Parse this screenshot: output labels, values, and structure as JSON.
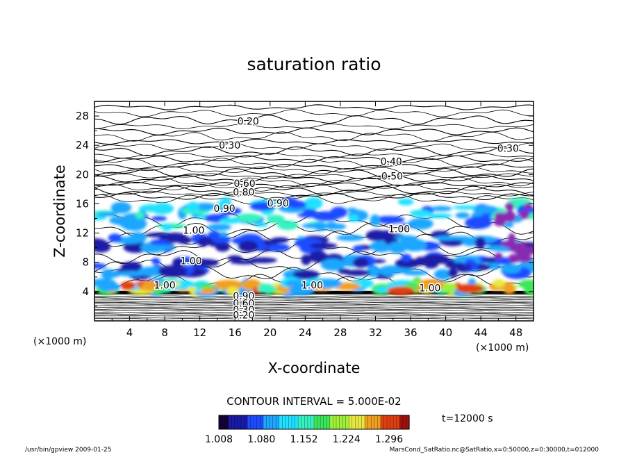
{
  "chart_data": {
    "type": "heatmap",
    "title": "saturation ratio",
    "xlabel": "X-coordinate",
    "ylabel": "Z-coordinate",
    "x_unit": "(×1000 m)",
    "y_unit": "(×1000 m)",
    "xlim": [
      0,
      50
    ],
    "ylim": [
      0,
      30
    ],
    "x_ticks": [
      4,
      8,
      12,
      16,
      20,
      24,
      28,
      32,
      36,
      40,
      44,
      48
    ],
    "y_ticks": [
      4,
      8,
      12,
      16,
      20,
      24,
      28
    ],
    "contour_interval_label": "CONTOUR INTERVAL = 5.000E-02",
    "time_label": "t=12000 s",
    "colorbar_ticks": [
      "1.008",
      "1.080",
      "1.152",
      "1.224",
      "1.296"
    ],
    "colorbar_range": [
      1.008,
      1.33
    ],
    "contour_labels": [
      {
        "text": "0.20",
        "x": 17.5,
        "z": 27.3
      },
      {
        "text": "0.30",
        "x": 15.4,
        "z": 24.0
      },
      {
        "text": "0.30",
        "x": 47.1,
        "z": 23.6
      },
      {
        "text": "0.40",
        "x": 33.8,
        "z": 21.8
      },
      {
        "text": "0.50",
        "x": 33.9,
        "z": 19.8
      },
      {
        "text": "0.60",
        "x": 17.1,
        "z": 18.8
      },
      {
        "text": "0.80",
        "x": 17.0,
        "z": 17.6
      },
      {
        "text": "0.90",
        "x": 20.9,
        "z": 16.1
      },
      {
        "text": "0.90",
        "x": 14.8,
        "z": 15.4
      },
      {
        "text": "1.00",
        "x": 11.3,
        "z": 12.4
      },
      {
        "text": "1.00",
        "x": 34.7,
        "z": 12.6
      },
      {
        "text": "1.00",
        "x": 11.0,
        "z": 8.2
      },
      {
        "text": "1.00",
        "x": 8.0,
        "z": 4.9
      },
      {
        "text": "1.00",
        "x": 24.8,
        "z": 4.9
      },
      {
        "text": "1.00",
        "x": 38.2,
        "z": 4.5
      },
      {
        "text": "0.90",
        "x": 17.0,
        "z": 3.4
      },
      {
        "text": "0.60",
        "x": 17.0,
        "z": 2.4
      },
      {
        "text": "0.30",
        "x": 17.0,
        "z": 1.5
      },
      {
        "text": "0.20",
        "x": 17.0,
        "z": 0.8
      }
    ]
  },
  "footer": {
    "left": "/usr/bin/gpview  2009-01-25",
    "right": "MarsCond_SatRatio.nc@SatRatio,x=0:50000,z=0:30000,t=012000"
  },
  "colors": {
    "colormap": [
      "#16003a",
      "#1a1aa6",
      "#1e4bff",
      "#1fa6ff",
      "#20e0ff",
      "#36f2c0",
      "#3ce65a",
      "#9ef03a",
      "#e8e840",
      "#f0a020",
      "#e04010",
      "#a01010"
    ],
    "purple_patch": "#8a2cb0"
  }
}
